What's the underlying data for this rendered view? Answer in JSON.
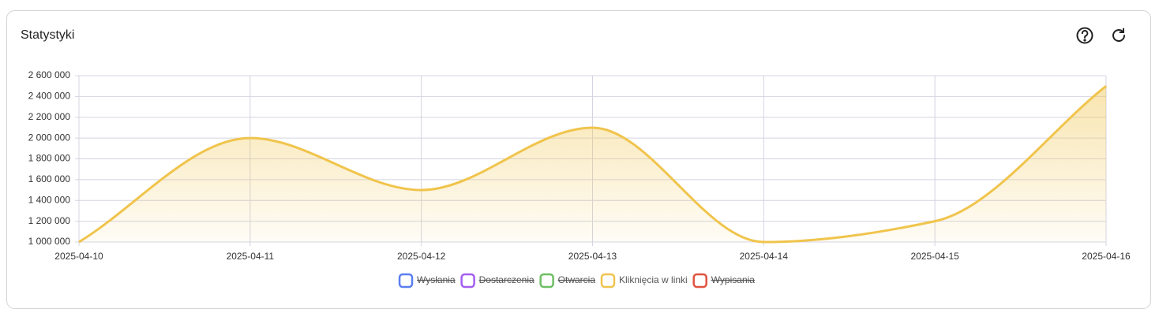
{
  "header": {
    "title": "Statystyki"
  },
  "chart_data": {
    "type": "line",
    "x": [
      "2025-04-10",
      "2025-04-11",
      "2025-04-12",
      "2025-04-13",
      "2025-04-14",
      "2025-04-15",
      "2025-04-16"
    ],
    "series": [
      {
        "name": "Wysłania",
        "color": "#5b7ef0",
        "hidden": true
      },
      {
        "name": "Dostarczenia",
        "color": "#a45ef0",
        "hidden": true
      },
      {
        "name": "Otwarcia",
        "color": "#6cbf62",
        "hidden": true
      },
      {
        "name": "Kliknięcia w linki",
        "color": "#f0c44c",
        "hidden": false,
        "values": [
          1000000,
          2000000,
          1500000,
          2100000,
          1000000,
          1200000,
          2500000
        ]
      },
      {
        "name": "Wypisania",
        "color": "#e0533f",
        "hidden": true
      }
    ],
    "ylim": [
      1000000,
      2600000
    ],
    "yticks": [
      {
        "value": 1000000,
        "label": "1 000 000"
      },
      {
        "value": 1200000,
        "label": "1 200 000"
      },
      {
        "value": 1400000,
        "label": "1 400 000"
      },
      {
        "value": 1600000,
        "label": "1 600 000"
      },
      {
        "value": 1800000,
        "label": "1 800 000"
      },
      {
        "value": 2000000,
        "label": "2 000 000"
      },
      {
        "value": 2200000,
        "label": "2 200 000"
      },
      {
        "value": 2400000,
        "label": "2 400 000"
      },
      {
        "value": 2600000,
        "label": "2 600 000"
      }
    ],
    "grid": true,
    "legend": "bottom"
  }
}
